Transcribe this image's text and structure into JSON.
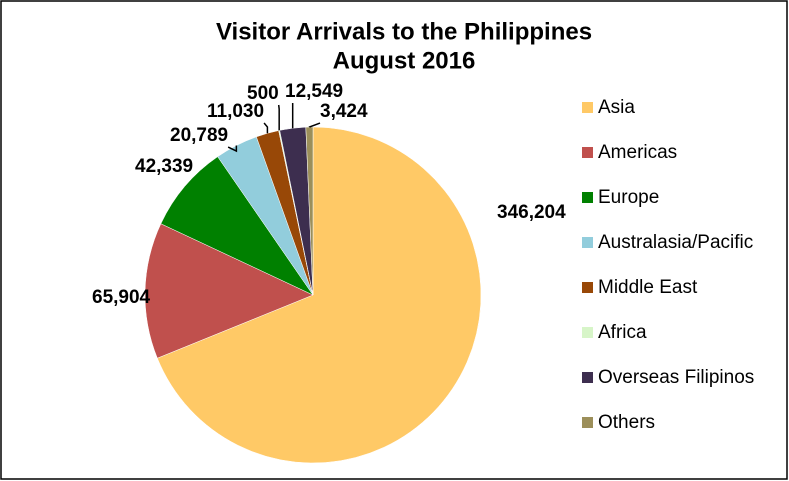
{
  "chart_data": {
    "type": "pie",
    "title": "Visitor Arrivals to the Philippines",
    "subtitle": "August 2016",
    "categories": [
      "Asia",
      "Americas",
      "Europe",
      "Australasia/Pacific",
      "Middle East",
      "Africa",
      "Overseas Filipinos",
      "Others"
    ],
    "values": [
      346204,
      65904,
      42339,
      20789,
      11030,
      500,
      12549,
      3424
    ],
    "value_labels": [
      "346,204",
      "65,904",
      "42,339",
      "20,789",
      "11,030",
      "500",
      "12,549",
      "3,424"
    ],
    "colors": [
      "#FFC966",
      "#C0504D",
      "#008000",
      "#92CDDC",
      "#984807",
      "#D7F5C8",
      "#3D2E4F",
      "#9C8F5A"
    ],
    "legend": "right"
  }
}
